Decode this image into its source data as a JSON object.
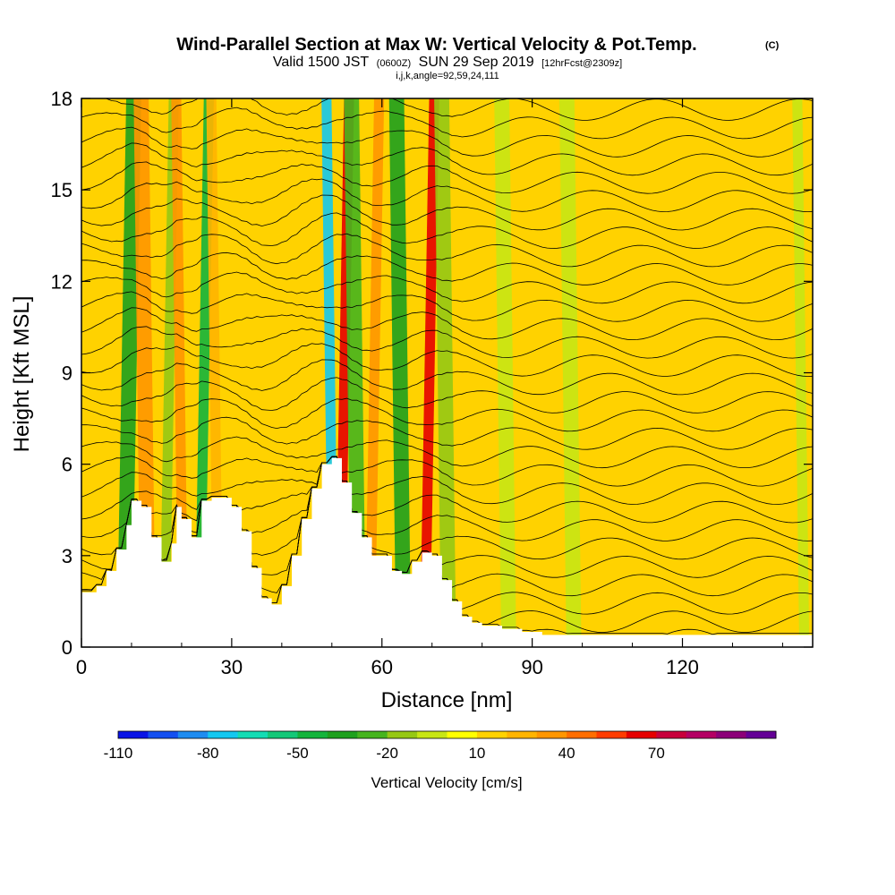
{
  "chart_data": {
    "type": "heatmap",
    "title": "Wind-Parallel Section at Max W: Vertical Velocity & Pot.Temp.",
    "title_mark": "(C)",
    "subtitle_main": "Valid 1500 JST",
    "subtitle_z": "(0600Z)",
    "subtitle_date": "SUN 29 Sep 2019",
    "subtitle_fcst": "[12hrFcst@2309z]",
    "subtitle2": "i,j,k,angle=92,59,24,111",
    "xlabel": "Distance [nm]",
    "ylabel": "Height [Kft MSL]",
    "xlim": [
      0,
      146
    ],
    "ylim": [
      0,
      18
    ],
    "x_ticks": [
      "0",
      "30",
      "60",
      "90",
      "120"
    ],
    "y_ticks": [
      "0",
      "3",
      "6",
      "9",
      "12",
      "15",
      "18"
    ],
    "colorbar_label": "Vertical Velocity [cm/s]",
    "colorbar_tick_labels": [
      "-110",
      "-80",
      "-50",
      "-20",
      "10",
      "40",
      "70"
    ],
    "colorbar_colors": [
      "#0a14e6",
      "#1450f0",
      "#1e8cf0",
      "#14c8f0",
      "#14dcb4",
      "#14c878",
      "#14b43c",
      "#1ea01e",
      "#46b41e",
      "#96c814",
      "#c8e614",
      "#ffff00",
      "#ffd200",
      "#ffb400",
      "#ff9600",
      "#ff6e00",
      "#ff3c00",
      "#e60000",
      "#c8003c",
      "#b40064",
      "#8c0078",
      "#640096"
    ],
    "colorbar_bins": [
      -110,
      -100,
      -90,
      -80,
      -70,
      -60,
      -50,
      -40,
      -30,
      -20,
      -10,
      0,
      10,
      20,
      30,
      40,
      50,
      60,
      70,
      80,
      90,
      100
    ],
    "terrain_profile_x_nm": [
      0,
      3,
      5,
      7,
      9,
      10,
      12,
      14,
      16,
      18,
      19,
      20,
      22,
      24,
      26,
      28,
      30,
      32,
      34,
      36,
      38,
      40,
      42,
      44,
      46,
      48,
      50,
      52,
      54,
      56,
      58,
      60,
      62,
      64,
      66,
      68,
      70,
      72,
      74,
      76,
      78,
      80,
      84,
      88,
      92,
      96,
      100,
      110,
      120,
      130,
      140,
      146
    ],
    "terrain_profile_kft": [
      1.8,
      2.0,
      2.5,
      3.2,
      4.0,
      4.8,
      4.6,
      3.6,
      2.8,
      3.4,
      4.6,
      4.2,
      3.6,
      4.8,
      4.9,
      4.9,
      4.6,
      3.8,
      2.6,
      1.6,
      1.4,
      2.0,
      3.0,
      4.2,
      5.2,
      6.0,
      6.2,
      5.4,
      4.4,
      3.6,
      3.0,
      3.0,
      2.5,
      2.4,
      2.8,
      3.1,
      3.0,
      2.2,
      1.5,
      1.0,
      0.8,
      0.7,
      0.6,
      0.5,
      0.4,
      0.4,
      0.4,
      0.4,
      0.4,
      0.4,
      0.4,
      0.4
    ],
    "vertical_velocity_bands": [
      {
        "x_nm": 9,
        "width_nm": 3,
        "w_cms": -40
      },
      {
        "x_nm": 13,
        "width_nm": 3,
        "w_cms": 35
      },
      {
        "x_nm": 17,
        "width_nm": 2,
        "w_cms": -20
      },
      {
        "x_nm": 20,
        "width_nm": 2,
        "w_cms": 30
      },
      {
        "x_nm": 24,
        "width_nm": 2,
        "w_cms": -45
      },
      {
        "x_nm": 27,
        "width_nm": 2,
        "w_cms": 20
      },
      {
        "x_nm": 42,
        "width_nm": 2,
        "w_cms": 15
      },
      {
        "x_nm": 50,
        "width_nm": 2,
        "w_cms": -80
      },
      {
        "x_nm": 52,
        "width_nm": 2,
        "w_cms": 60
      },
      {
        "x_nm": 55,
        "width_nm": 3,
        "w_cms": -30
      },
      {
        "x_nm": 58,
        "width_nm": 2,
        "w_cms": 30
      },
      {
        "x_nm": 64,
        "width_nm": 3,
        "w_cms": -35
      },
      {
        "x_nm": 69,
        "width_nm": 2,
        "w_cms": 60
      },
      {
        "x_nm": 73,
        "width_nm": 3,
        "w_cms": -15
      },
      {
        "x_nm": 78,
        "width_nm": 3,
        "w_cms": 10
      },
      {
        "x_nm": 85,
        "width_nm": 3,
        "w_cms": -5
      },
      {
        "x_nm": 92,
        "width_nm": 2,
        "w_cms": 15
      },
      {
        "x_nm": 98,
        "width_nm": 3,
        "w_cms": -10
      },
      {
        "x_nm": 110,
        "width_nm": 3,
        "w_cms": 10
      },
      {
        "x_nm": 125,
        "width_nm": 3,
        "w_cms": 12
      },
      {
        "x_nm": 138,
        "width_nm": 3,
        "w_cms": 15
      },
      {
        "x_nm": 144,
        "width_nm": 2,
        "w_cms": -10
      }
    ],
    "potential_temperature_contours": {
      "count": 30,
      "base_kft": 0.2,
      "spacing_kft": 0.6
    }
  }
}
